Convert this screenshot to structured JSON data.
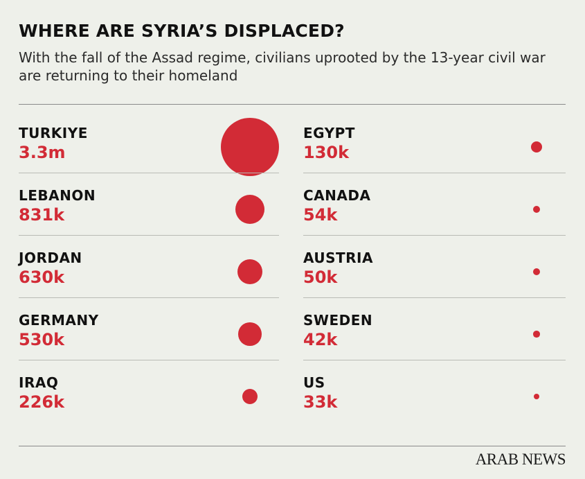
{
  "title": "WHERE ARE SYRIA’S DISPLACED?",
  "subtitle": "With the fall of the Assad regime, civilians uprooted by the 13-year civil war are returning to their homeland",
  "logo": "ARAB NEWS",
  "colors": {
    "dot": "#d22b36",
    "value": "#d22b36",
    "background": "#eef0ea"
  },
  "chart_data": {
    "type": "bubble",
    "title": "WHERE ARE SYRIA’S DISPLACED?",
    "subtitle": "With the fall of the Assad regime, civilians uprooted by the 13-year civil war are returning to their homeland",
    "categories": [
      "TURKIYE",
      "LEBANON",
      "JORDAN",
      "GERMANY",
      "IRAQ",
      "EGYPT",
      "CANADA",
      "AUSTRIA",
      "SWEDEN",
      "US"
    ],
    "values": [
      3300000,
      831000,
      630000,
      530000,
      226000,
      130000,
      54000,
      50000,
      42000,
      33000
    ],
    "labels": [
      "3.3m",
      "831k",
      "630k",
      "530k",
      "226k",
      "130k",
      "54k",
      "50k",
      "42k",
      "33k"
    ]
  }
}
